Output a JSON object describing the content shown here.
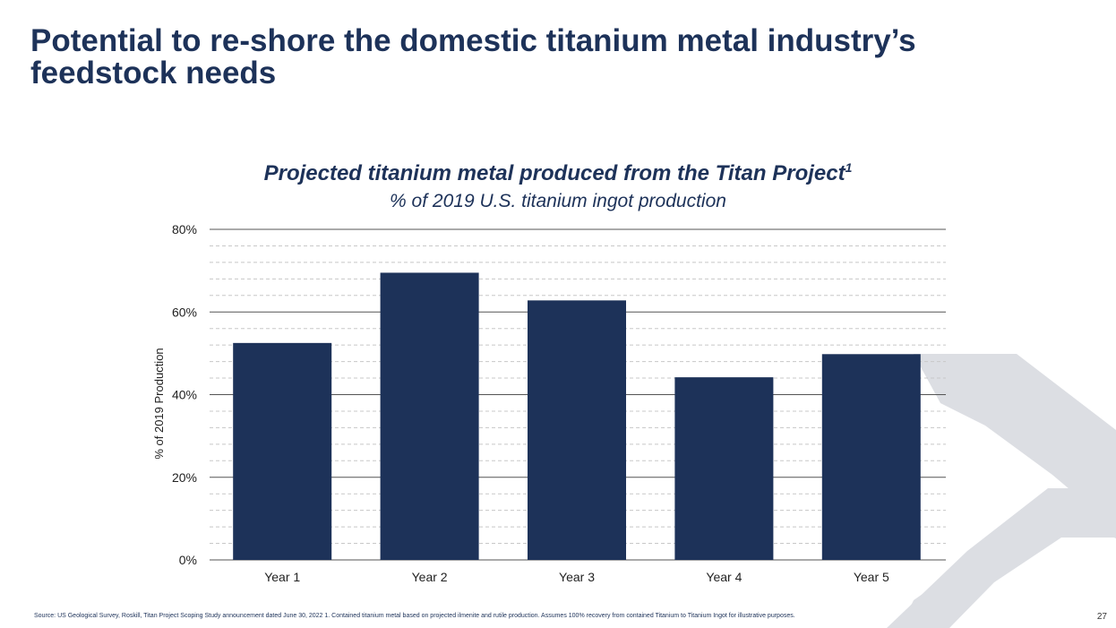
{
  "title": "Potential to re-shore the domestic titanium metal industry’s feedstock needs",
  "chart_title": "Projected titanium metal produced from the Titan Project",
  "chart_title_sup": "1",
  "chart_subtitle": "% of 2019 U.S. titanium ingot production",
  "footnote": "Source: US Geological Survey, Roskill, Titan Project Scoping Study announcement dated June 30, 2022 1. Contained titanium metal based on projected ilmenite and rutile production. Assumes 100% recovery from contained Titanium to Titanium Ingot for illustrative purposes.",
  "page_number": "27",
  "colors": {
    "bar": "#1d3259",
    "text": "#1d3259",
    "grid_major": "#555555",
    "grid_minor": "#c8c8c8",
    "deco": "#dcdee3"
  },
  "chart_data": {
    "type": "bar",
    "title": "Projected titanium metal produced from the Titan Project",
    "subtitle": "% of 2019 U.S. titanium ingot production",
    "categories": [
      "Year 1",
      "Year 2",
      "Year 3",
      "Year 4",
      "Year 5"
    ],
    "values": [
      52.5,
      69.5,
      62.8,
      44.2,
      49.8
    ],
    "xlabel": "",
    "ylabel": "% of 2019 Production",
    "ylim": [
      0,
      80
    ],
    "yticks": [
      0,
      20,
      40,
      60,
      80
    ],
    "ytick_labels": [
      "0%",
      "20%",
      "40%",
      "60%",
      "80%"
    ],
    "minor_grid_step": 4,
    "grid": true,
    "legend": false
  }
}
